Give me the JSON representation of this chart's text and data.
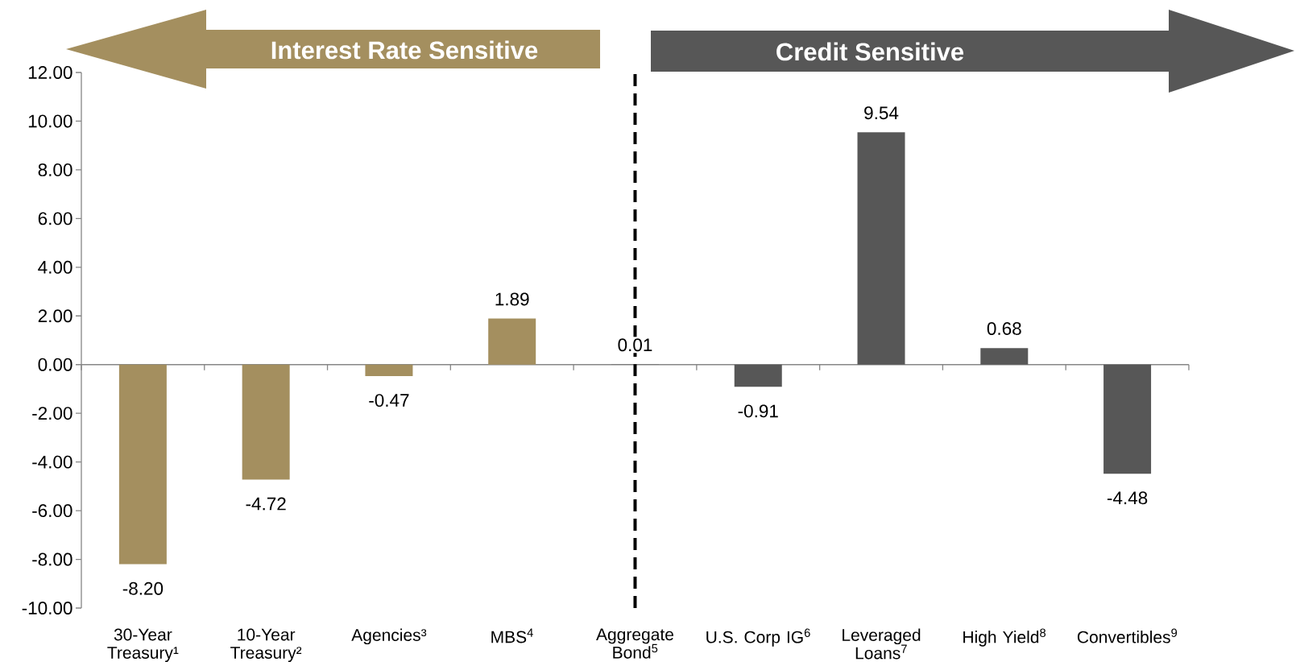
{
  "chart_data": {
    "type": "bar",
    "categories": [
      "30-Year Treasury¹",
      "10-Year Treasury²",
      "Agencies³",
      "MBS$^{4}$",
      "Aggregate Bond$^{5}$",
      "U.S. Corp IG$^{6}$",
      "Leveraged Loans$^{7}$",
      "High Yield$^{8}$",
      "Convertibles$^{9}$"
    ],
    "values": [
      -8.2,
      -4.72,
      -0.47,
      1.89,
      0.01,
      -0.91,
      9.54,
      0.68,
      -4.48
    ],
    "colors": [
      "#a48f5f",
      "#a48f5f",
      "#a48f5f",
      "#a48f5f",
      "#575757",
      "#575757",
      "#575757",
      "#575757",
      "#575757"
    ],
    "value_labels": [
      "-8.20",
      "-4.72",
      "-0.47",
      "1.89",
      "0.01",
      "-0.91",
      "9.54",
      "0.68",
      "-4.48"
    ],
    "ylim": [
      -10,
      12
    ],
    "yticks": [
      {
        "value": -10,
        "label": "-10.00"
      },
      {
        "value": -8,
        "label": "-8.00"
      },
      {
        "value": -6,
        "label": "-6.00"
      },
      {
        "value": -4,
        "label": "-4.00"
      },
      {
        "value": -2,
        "label": "-2.00"
      },
      {
        "value": 0,
        "label": "0.00"
      },
      {
        "value": 2,
        "label": "2.00"
      },
      {
        "value": 4,
        "label": "4.00"
      },
      {
        "value": 6,
        "label": "6.00"
      },
      {
        "value": 8,
        "label": "8.00"
      },
      {
        "value": 10,
        "label": "10.00"
      },
      {
        "value": 12,
        "label": "12.00"
      }
    ],
    "ref_lines": [
      {
        "axis": "x",
        "value": "Aggregate Bond$^{5}$",
        "color": "#000000",
        "line_style": "dashed"
      }
    ],
    "annotations": [
      "Interest Rate Sensitive",
      "Credit Sensitive"
    ]
  }
}
